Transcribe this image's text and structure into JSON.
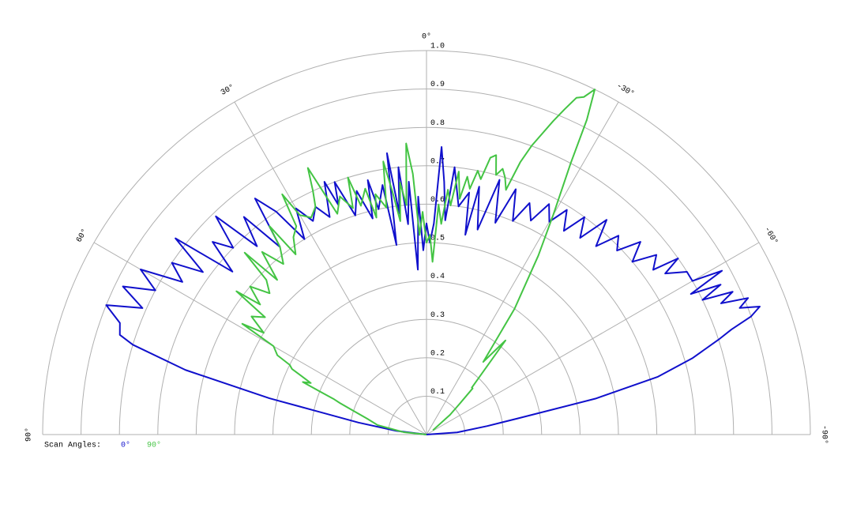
{
  "chart_data": {
    "type": "polar",
    "legend_title": "Scan Angles:",
    "rlim": [
      0,
      1
    ],
    "rticks": [
      0.1,
      0.2,
      0.3,
      0.4,
      0.5,
      0.6,
      0.7,
      0.8,
      0.9,
      {
        "value": 1,
        "label": "1.0"
      }
    ],
    "angle_ticks": [
      {
        "value": 90,
        "label": "90°"
      },
      {
        "value": 60,
        "label": "60°"
      },
      {
        "value": 30,
        "label": "30°"
      },
      {
        "value": 0,
        "label": "0°"
      },
      {
        "value": -30,
        "label": "-30°"
      },
      {
        "value": -60,
        "label": "-60°"
      },
      {
        "value": -90,
        "label": "-90°"
      }
    ],
    "grid_color": "#b0b0b0",
    "series": [
      {
        "name": "0°",
        "color": "#1010cc",
        "x": [
          -90,
          -86,
          -82,
          -80,
          -78,
          -76,
          -74,
          -72,
          -71,
          -70,
          -69,
          -68,
          -67,
          -66,
          -65,
          -64,
          -63,
          -62,
          -61,
          -60,
          -58,
          -56,
          -55,
          -54,
          -52,
          -50,
          -48,
          -46,
          -44,
          -42,
          -40,
          -38,
          -36,
          -34,
          -32,
          -30,
          -28,
          -26,
          -24,
          -22,
          -20,
          -18,
          -16,
          -14,
          -12,
          -11,
          -10,
          -8,
          -6,
          -5,
          -4,
          -3,
          -2,
          -1,
          0,
          1,
          2,
          3,
          4,
          5,
          6,
          7,
          8,
          9,
          10,
          12,
          13,
          14,
          16,
          18,
          20,
          21,
          22,
          24,
          26,
          28,
          30,
          32,
          34,
          36,
          38,
          40,
          42,
          44,
          46,
          48,
          50,
          52,
          54,
          56,
          58,
          60,
          62,
          64,
          66,
          68,
          70,
          72,
          73,
          75,
          77,
          78,
          80,
          83,
          90
        ],
        "values": [
          0,
          0.08,
          0.16,
          0.24,
          0.45,
          0.62,
          0.72,
          0.8,
          0.84,
          0.9,
          0.93,
          0.88,
          0.91,
          0.84,
          0.88,
          0.8,
          0.86,
          0.78,
          0.88,
          0.8,
          0.8,
          0.75,
          0.8,
          0.73,
          0.76,
          0.7,
          0.75,
          0.69,
          0.72,
          0.66,
          0.73,
          0.65,
          0.7,
          0.64,
          0.69,
          0.64,
          0.68,
          0.62,
          0.66,
          0.6,
          0.68,
          0.58,
          0.69,
          0.55,
          0.66,
          0.53,
          0.64,
          0.6,
          0.7,
          0.56,
          0.66,
          0.75,
          0.55,
          0.5,
          0.55,
          0.48,
          0.62,
          0.43,
          0.66,
          0.55,
          0.7,
          0.58,
          0.74,
          0.5,
          0.66,
          0.6,
          0.68,
          0.58,
          0.66,
          0.6,
          0.7,
          0.64,
          0.71,
          0.62,
          0.66,
          0.63,
          0.68,
          0.6,
          0.7,
          0.76,
          0.62,
          0.74,
          0.66,
          0.79,
          0.7,
          0.75,
          0.66,
          0.83,
          0.72,
          0.8,
          0.75,
          0.86,
          0.8,
          0.88,
          0.81,
          0.9,
          0.85,
          0.84,
          0.8,
          0.65,
          0.42,
          0.29,
          0.18,
          0.08,
          0
        ]
      },
      {
        "name": "90°",
        "color": "#44c444",
        "x": [
          -56,
          -50,
          -47,
          -45,
          -44,
          -40,
          -38,
          -35,
          -32,
          -30,
          -28,
          -27,
          -26,
          -25,
          -24,
          -23,
          -22,
          -20,
          -19,
          -18,
          -17,
          -16,
          -15,
          -14,
          -13,
          -12,
          -11,
          -10,
          -9,
          -8,
          -7,
          -6,
          -5,
          -4,
          -3,
          -2,
          -1,
          0,
          1,
          2,
          3,
          4,
          5,
          6,
          7,
          8,
          9,
          10,
          12,
          13,
          14,
          16,
          17,
          18,
          20,
          22,
          24,
          25,
          26,
          28,
          30,
          31,
          32,
          34,
          36,
          37,
          38,
          40,
          42,
          44,
          45,
          46,
          48,
          50,
          52,
          53,
          54,
          56,
          58,
          59,
          60,
          62,
          63,
          64,
          66,
          67,
          68,
          69,
          70,
          72,
          75,
          79,
          84,
          90
        ],
        "values": [
          0.02,
          0.08,
          0.12,
          0.17,
          0.17,
          0.32,
          0.24,
          0.4,
          0.55,
          0.66,
          0.8,
          0.92,
          1,
          0.97,
          0.96,
          0.92,
          0.88,
          0.8,
          0.75,
          0.67,
          0.7,
          0.72,
          0.7,
          0.75,
          0.74,
          0.68,
          0.7,
          0.65,
          0.68,
          0.62,
          0.69,
          0.6,
          0.64,
          0.55,
          0.6,
          0.45,
          0.52,
          0.5,
          0.58,
          0.52,
          0.68,
          0.76,
          0.6,
          0.66,
          0.56,
          0.64,
          0.72,
          0.6,
          0.64,
          0.58,
          0.66,
          0.62,
          0.7,
          0.62,
          0.66,
          0.62,
          0.76,
          0.7,
          0.66,
          0.64,
          0.66,
          0.73,
          0.64,
          0.62,
          0.58,
          0.68,
          0.62,
          0.58,
          0.64,
          0.56,
          0.67,
          0.58,
          0.55,
          0.6,
          0.55,
          0.62,
          0.52,
          0.55,
          0.5,
          0.56,
          0.46,
          0.44,
          0.4,
          0.39,
          0.33,
          0.35,
          0.3,
          0.26,
          0.24,
          0.2,
          0.16,
          0.13,
          0.06,
          0
        ]
      }
    ]
  }
}
